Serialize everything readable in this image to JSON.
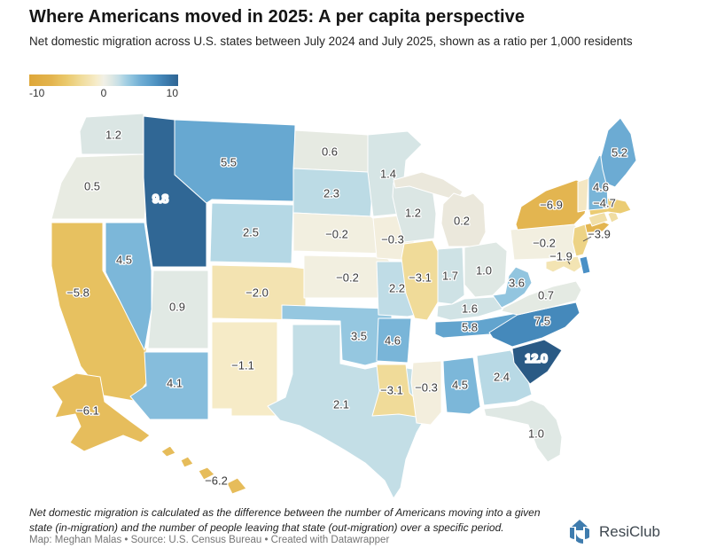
{
  "header": {
    "title": "Where Americans moved in 2025: A per capita perspective",
    "subtitle": "Net domestic migration across U.S. states between July 2024 and July 2025, shown as a ratio per 1,000 residents"
  },
  "legend": {
    "min_label": "-10",
    "mid_label": "0",
    "max_label": "10",
    "min_value": -10,
    "max_value": 10
  },
  "footer": {
    "note": "Net domestic migration is calculated as the difference between the number of Americans moving into a given state (in-migration) and the number of people leaving that state (out-migration) over a specific period.",
    "credits": "Map: Meghan Malas • Source: U.S. Census Bureau • Created with Datawrapper",
    "logo_text": "ResiClub",
    "logo_color": "#3f7cae"
  },
  "chart_data": {
    "type": "choropleth-map",
    "title": "Where Americans moved in 2025: A per capita perspective",
    "unit": "net domestic migration per 1,000 residents",
    "period": "July 2024 to July 2025",
    "scale": {
      "min": -10,
      "max": 10,
      "stops": [
        [
          -10,
          "#dea739"
        ],
        [
          -7,
          "#e3b44e"
        ],
        [
          -5,
          "#eac96c"
        ],
        [
          -4,
          "#edd283"
        ],
        [
          -3,
          "#f0dc9b"
        ],
        [
          -2,
          "#f3e3b1"
        ],
        [
          -1,
          "#f6ecc9"
        ],
        [
          -0.3,
          "#f3eedd"
        ],
        [
          0,
          "#f1f0e6"
        ],
        [
          0.2,
          "#ebe8dc"
        ],
        [
          0.5,
          "#e8ebe2"
        ],
        [
          1,
          "#dfe8e4"
        ],
        [
          1.5,
          "#d4e4e5"
        ],
        [
          2,
          "#c6dfe6"
        ],
        [
          2.5,
          "#b5d8e5"
        ],
        [
          3,
          "#a3cfe3"
        ],
        [
          3.6,
          "#92c5df"
        ],
        [
          4.5,
          "#7cb7d9"
        ],
        [
          5,
          "#6fadd4"
        ],
        [
          5.5,
          "#67a8d1"
        ],
        [
          6,
          "#5ea1cc"
        ],
        [
          7.5,
          "#4589bb"
        ],
        [
          8.5,
          "#3a79ab"
        ],
        [
          10,
          "#2f6492"
        ],
        [
          12,
          "#2a5a85"
        ]
      ]
    },
    "states": [
      {
        "id": "WA",
        "name": "Washington",
        "value": 1.2,
        "label": "1.2"
      },
      {
        "id": "OR",
        "name": "Oregon",
        "value": 0.5,
        "label": "0.5"
      },
      {
        "id": "CA",
        "name": "California",
        "value": -5.8,
        "label": "−5.8"
      },
      {
        "id": "NV",
        "name": "Nevada",
        "value": 4.5,
        "label": "4.5"
      },
      {
        "id": "ID",
        "name": "Idaho",
        "value": 9.8,
        "label": "9.8",
        "label_light": true
      },
      {
        "id": "MT",
        "name": "Montana",
        "value": 5.5,
        "label": "5.5"
      },
      {
        "id": "WY",
        "name": "Wyoming",
        "value": 2.5,
        "label": "2.5"
      },
      {
        "id": "UT",
        "name": "Utah",
        "value": 0.9,
        "label": "0.9"
      },
      {
        "id": "CO",
        "name": "Colorado",
        "value": -2.0,
        "label": "−2.0"
      },
      {
        "id": "AZ",
        "name": "Arizona",
        "value": 4.1,
        "label": "4.1"
      },
      {
        "id": "NM",
        "name": "New Mexico",
        "value": -1.1,
        "label": "−1.1"
      },
      {
        "id": "ND",
        "name": "North Dakota",
        "value": 0.6,
        "label": "0.6"
      },
      {
        "id": "SD",
        "name": "South Dakota",
        "value": 2.3,
        "label": "2.3"
      },
      {
        "id": "NE",
        "name": "Nebraska",
        "value": -0.2,
        "label": "−0.2"
      },
      {
        "id": "KS",
        "name": "Kansas",
        "value": -0.2,
        "label": "−0.2"
      },
      {
        "id": "OK",
        "name": "Oklahoma",
        "value": 3.5,
        "label": "3.5"
      },
      {
        "id": "TX",
        "name": "Texas",
        "value": 2.1,
        "label": "2.1"
      },
      {
        "id": "MN",
        "name": "Minnesota",
        "value": 1.4,
        "label": "1.4"
      },
      {
        "id": "IA",
        "name": "Iowa",
        "value": -0.3,
        "label": "−0.3"
      },
      {
        "id": "MO",
        "name": "Missouri",
        "value": 2.2,
        "label": "2.2"
      },
      {
        "id": "AR",
        "name": "Arkansas",
        "value": 4.6,
        "label": "4.6"
      },
      {
        "id": "LA",
        "name": "Louisiana",
        "value": -3.1,
        "label": "−3.1"
      },
      {
        "id": "WI",
        "name": "Wisconsin",
        "value": 1.2,
        "label": "1.2"
      },
      {
        "id": "IL",
        "name": "Illinois",
        "value": -3.1,
        "label": "−3.1"
      },
      {
        "id": "MI",
        "name": "Michigan",
        "value": 0.2,
        "label": "0.2"
      },
      {
        "id": "IN",
        "name": "Indiana",
        "value": 1.7,
        "label": "1.7"
      },
      {
        "id": "OH",
        "name": "Ohio",
        "value": 1.0,
        "label": "1.0"
      },
      {
        "id": "KY",
        "name": "Kentucky",
        "value": 1.6,
        "label": "1.6"
      },
      {
        "id": "TN",
        "name": "Tennessee",
        "value": 5.8,
        "label": "5.8"
      },
      {
        "id": "MS",
        "name": "Mississippi",
        "value": -0.3,
        "label": "−0.3"
      },
      {
        "id": "AL",
        "name": "Alabama",
        "value": 4.5,
        "label": "4.5"
      },
      {
        "id": "GA",
        "name": "Georgia",
        "value": 2.4,
        "label": "2.4"
      },
      {
        "id": "FL",
        "name": "Florida",
        "value": 1.0,
        "label": "1.0"
      },
      {
        "id": "SC",
        "name": "South Carolina",
        "value": 12.0,
        "label": "12.0",
        "label_light": true
      },
      {
        "id": "NC",
        "name": "North Carolina",
        "value": 7.5,
        "label": "7.5"
      },
      {
        "id": "VA",
        "name": "Virginia",
        "value": 0.7,
        "label": "0.7"
      },
      {
        "id": "WV",
        "name": "West Virginia",
        "value": 3.6,
        "label": "3.6"
      },
      {
        "id": "PA",
        "name": "Pennsylvania",
        "value": -0.2,
        "label": "−0.2"
      },
      {
        "id": "NY",
        "name": "New York",
        "value": -6.9,
        "label": "−6.9"
      },
      {
        "id": "NJ",
        "name": "New Jersey",
        "value": -3.9,
        "label": "−3.9"
      },
      {
        "id": "MD",
        "name": "Maryland",
        "value": -1.9,
        "label": "−1.9"
      },
      {
        "id": "DE",
        "name": "Delaware",
        "value": null,
        "label": "",
        "fill": "#4a90c6"
      },
      {
        "id": "CT",
        "name": "Connecticut",
        "value": null,
        "label": "",
        "fill": "#f1dfa7"
      },
      {
        "id": "RI",
        "name": "Rhode Island",
        "value": null,
        "label": "",
        "fill": "#f0dda2"
      },
      {
        "id": "MA",
        "name": "Massachusetts",
        "value": -4.7,
        "label": "−4.7"
      },
      {
        "id": "VT",
        "name": "Vermont",
        "value": null,
        "label": "",
        "fill": "#f4e7c3"
      },
      {
        "id": "NH",
        "name": "New Hampshire",
        "value": 4.6,
        "label": "4.6"
      },
      {
        "id": "ME",
        "name": "Maine",
        "value": 5.2,
        "label": "5.2"
      },
      {
        "id": "AK",
        "name": "Alaska",
        "value": -6.1,
        "label": "−6.1"
      },
      {
        "id": "HI",
        "name": "Hawaii",
        "value": -6.2,
        "label": "−6.2"
      }
    ]
  }
}
